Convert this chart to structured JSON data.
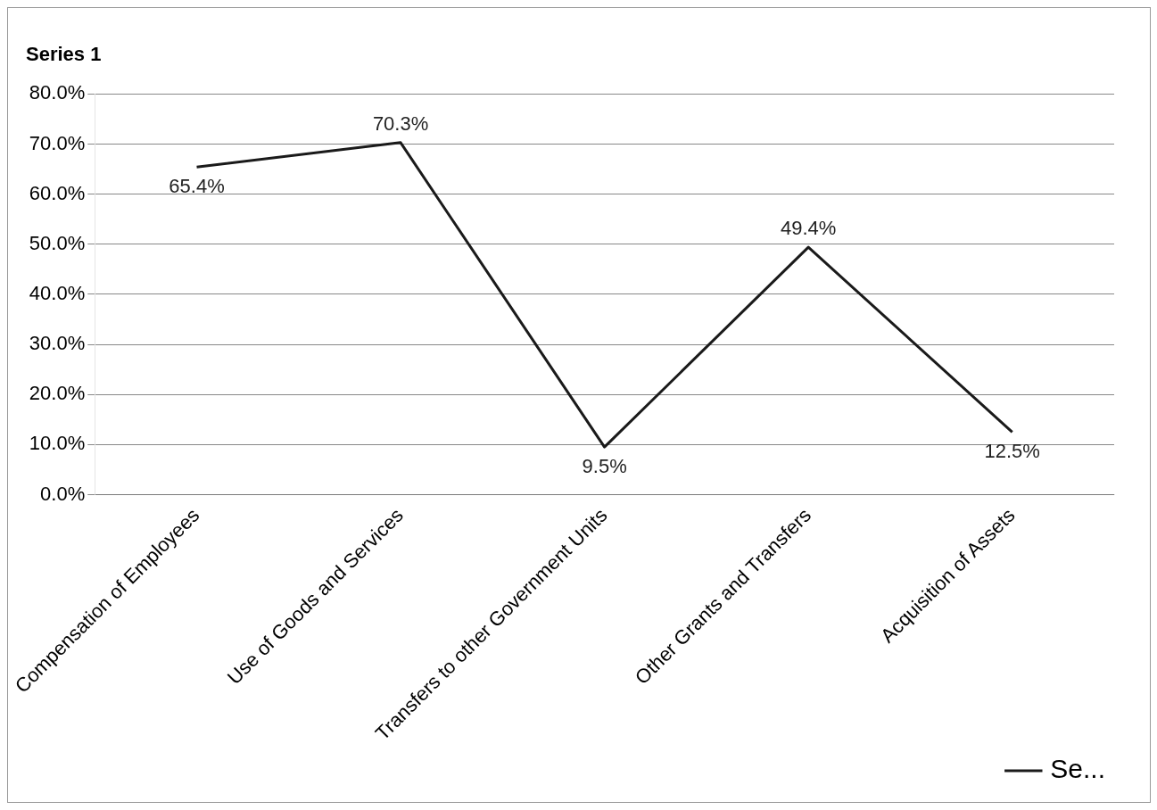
{
  "chart_data": {
    "type": "line",
    "title": "Series 1",
    "categories": [
      "Compensation of Employees",
      "Use of Goods and Services",
      "Transfers to other Government Units",
      "Other Grants and Transfers",
      "Acquisition of Assets"
    ],
    "series": [
      {
        "name": "Se...",
        "color": "#1a1a1a",
        "values": [
          65.4,
          70.3,
          9.5,
          49.4,
          12.5
        ]
      }
    ],
    "ylim": [
      0,
      80
    ],
    "yticks": [
      {
        "value": 0,
        "label": "0.0%"
      },
      {
        "value": 10,
        "label": "10.0%"
      },
      {
        "value": 20,
        "label": "20.0%"
      },
      {
        "value": 30,
        "label": "30.0%"
      },
      {
        "value": 40,
        "label": "40.0%"
      },
      {
        "value": 50,
        "label": "50.0%"
      },
      {
        "value": 60,
        "label": "60.0%"
      },
      {
        "value": 70,
        "label": "70.0%"
      },
      {
        "value": 80,
        "label": "80.0%"
      }
    ],
    "value_labels": [
      "65.4%",
      "70.3%",
      "9.5%",
      "49.4%",
      "12.5%"
    ],
    "grid": "y",
    "legend": "bottom right",
    "marker": "none",
    "line_style": "solid"
  }
}
